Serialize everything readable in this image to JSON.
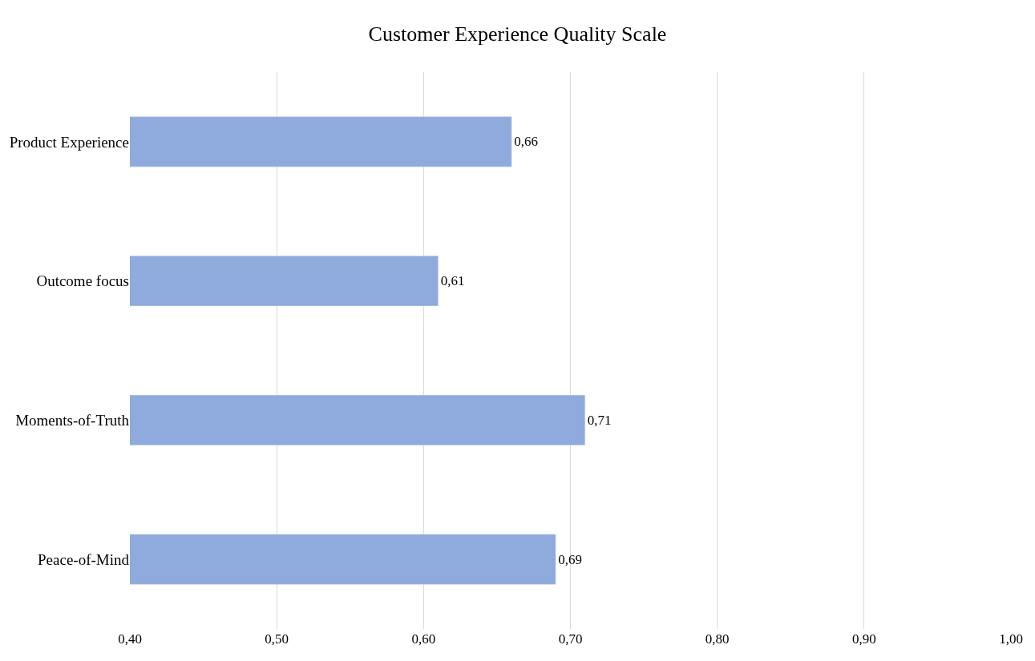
{
  "chart_data": {
    "type": "bar",
    "orientation": "horizontal",
    "title": "Customer Experience Quality Scale",
    "categories": [
      "Product Experience",
      "Outcome focus",
      "Moments-of-Truth",
      "Peace-of-Mind"
    ],
    "values": [
      0.66,
      0.61,
      0.71,
      0.69
    ],
    "value_labels": [
      "0,66",
      "0,61",
      "0,71",
      "0,69"
    ],
    "color": "#8faadc",
    "xlim": [
      0.4,
      1.0
    ],
    "xticks": [
      {
        "value": 0.4,
        "label": "0,40"
      },
      {
        "value": 0.5,
        "label": "0,50"
      },
      {
        "value": 0.6,
        "label": "0,60"
      },
      {
        "value": 0.7,
        "label": "0,70"
      },
      {
        "value": 0.8,
        "label": "0,80"
      },
      {
        "value": 0.9,
        "label": "0,90"
      },
      {
        "value": 1.0,
        "label": "1,00"
      }
    ],
    "grid": "x",
    "legend": false
  }
}
